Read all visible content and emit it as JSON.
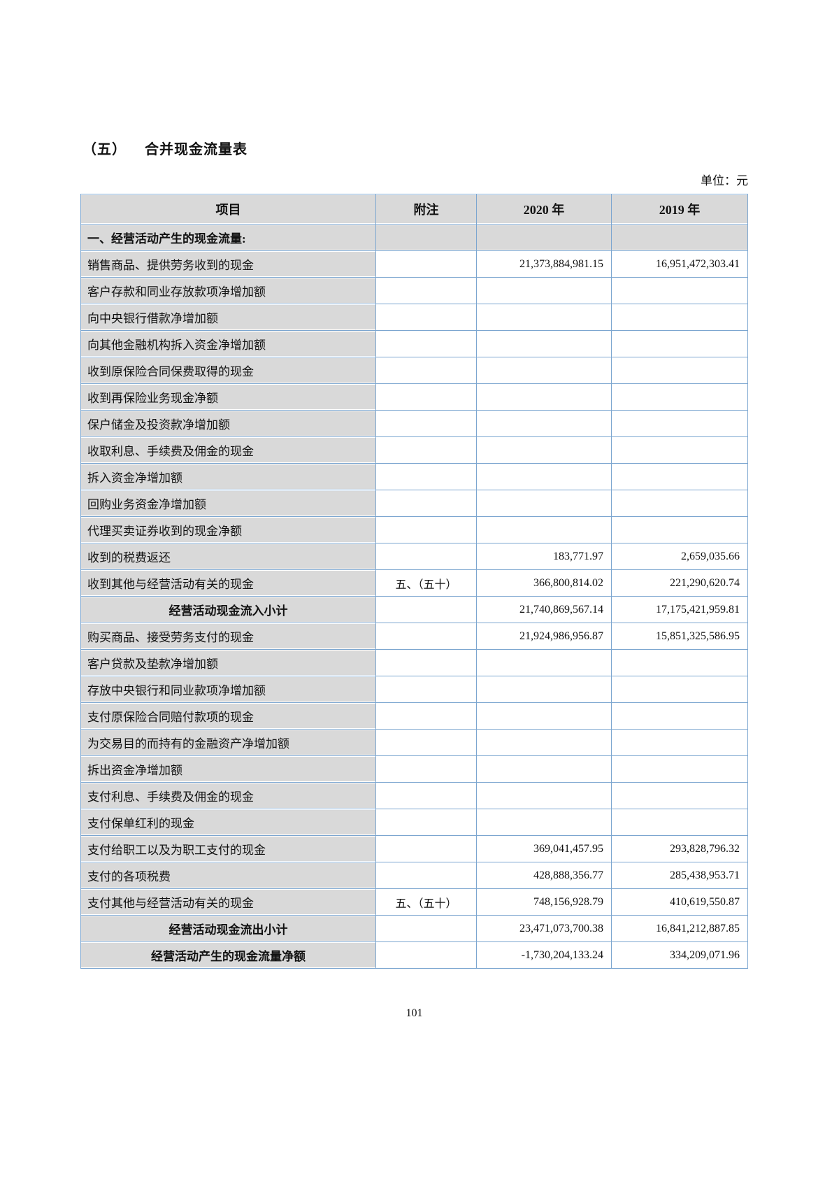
{
  "colors": {
    "border_blue": "#7ca6d0",
    "shade_gray": "#d9d9d9",
    "text": "#111111"
  },
  "page": {
    "section_label": "（五）",
    "title": "合并现金流量表",
    "unit_label": "单位：元",
    "page_number": "101"
  },
  "table": {
    "headers": {
      "item": "项目",
      "note": "附注",
      "col2020": "2020 年",
      "col2019": "2019 年"
    },
    "rows": [
      {
        "type": "section",
        "item": "一、经营活动产生的现金流量:",
        "note": "",
        "v2020": "",
        "v2019": ""
      },
      {
        "type": "item",
        "item": "销售商品、提供劳务收到的现金",
        "note": "",
        "v2020": "21,373,884,981.15",
        "v2019": "16,951,472,303.41"
      },
      {
        "type": "item",
        "item": "客户存款和同业存放款项净增加额",
        "note": "",
        "v2020": "",
        "v2019": ""
      },
      {
        "type": "item",
        "item": "向中央银行借款净增加额",
        "note": "",
        "v2020": "",
        "v2019": ""
      },
      {
        "type": "item",
        "item": "向其他金融机构拆入资金净增加额",
        "note": "",
        "v2020": "",
        "v2019": ""
      },
      {
        "type": "item",
        "item": "收到原保险合同保费取得的现金",
        "note": "",
        "v2020": "",
        "v2019": ""
      },
      {
        "type": "item",
        "item": "收到再保险业务现金净额",
        "note": "",
        "v2020": "",
        "v2019": ""
      },
      {
        "type": "item",
        "item": "保户储金及投资款净增加额",
        "note": "",
        "v2020": "",
        "v2019": ""
      },
      {
        "type": "item",
        "item": "收取利息、手续费及佣金的现金",
        "note": "",
        "v2020": "",
        "v2019": ""
      },
      {
        "type": "item",
        "item": "拆入资金净增加额",
        "note": "",
        "v2020": "",
        "v2019": ""
      },
      {
        "type": "item",
        "item": "回购业务资金净增加额",
        "note": "",
        "v2020": "",
        "v2019": ""
      },
      {
        "type": "item",
        "item": "代理买卖证券收到的现金净额",
        "note": "",
        "v2020": "",
        "v2019": ""
      },
      {
        "type": "item",
        "item": "收到的税费返还",
        "note": "",
        "v2020": "183,771.97",
        "v2019": "2,659,035.66"
      },
      {
        "type": "item",
        "item": "收到其他与经营活动有关的现金",
        "note": "五、（五十）",
        "v2020": "366,800,814.02",
        "v2019": "221,290,620.74"
      },
      {
        "type": "subtotal",
        "item": "经营活动现金流入小计",
        "note": "",
        "v2020": "21,740,869,567.14",
        "v2019": "17,175,421,959.81"
      },
      {
        "type": "item",
        "item": "购买商品、接受劳务支付的现金",
        "note": "",
        "v2020": "21,924,986,956.87",
        "v2019": "15,851,325,586.95"
      },
      {
        "type": "item",
        "item": "客户贷款及垫款净增加额",
        "note": "",
        "v2020": "",
        "v2019": ""
      },
      {
        "type": "item",
        "item": "存放中央银行和同业款项净增加额",
        "note": "",
        "v2020": "",
        "v2019": ""
      },
      {
        "type": "item",
        "item": "支付原保险合同赔付款项的现金",
        "note": "",
        "v2020": "",
        "v2019": ""
      },
      {
        "type": "item",
        "item": "为交易目的而持有的金融资产净增加额",
        "note": "",
        "v2020": "",
        "v2019": ""
      },
      {
        "type": "item",
        "item": "拆出资金净增加额",
        "note": "",
        "v2020": "",
        "v2019": ""
      },
      {
        "type": "item",
        "item": "支付利息、手续费及佣金的现金",
        "note": "",
        "v2020": "",
        "v2019": ""
      },
      {
        "type": "item",
        "item": "支付保单红利的现金",
        "note": "",
        "v2020": "",
        "v2019": ""
      },
      {
        "type": "item",
        "item": "支付给职工以及为职工支付的现金",
        "note": "",
        "v2020": "369,041,457.95",
        "v2019": "293,828,796.32"
      },
      {
        "type": "item",
        "item": "支付的各项税费",
        "note": "",
        "v2020": "428,888,356.77",
        "v2019": "285,438,953.71"
      },
      {
        "type": "item",
        "item": "支付其他与经营活动有关的现金",
        "note": "五、（五十）",
        "v2020": "748,156,928.79",
        "v2019": "410,619,550.87"
      },
      {
        "type": "subtotal",
        "item": "经营活动现金流出小计",
        "note": "",
        "v2020": "23,471,073,700.38",
        "v2019": "16,841,212,887.85"
      },
      {
        "type": "subtotal",
        "item": "经营活动产生的现金流量净额",
        "note": "",
        "v2020": "-1,730,204,133.24",
        "v2019": "334,209,071.96"
      }
    ]
  }
}
